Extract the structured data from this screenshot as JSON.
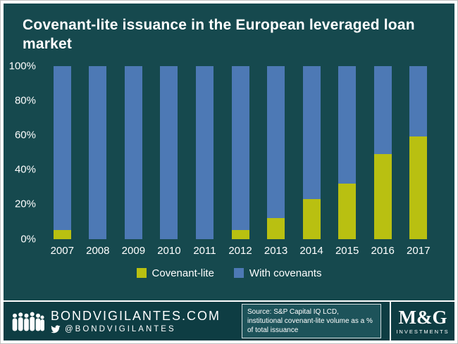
{
  "title": "Covenant-lite issuance in the European leveraged loan market",
  "colors": {
    "background": "#16494e",
    "footer_background": "#0e3d43",
    "covenant_lite": "#b9c011",
    "with_covenants": "#4d79b5",
    "text": "#ffffff"
  },
  "chart_data": {
    "type": "bar",
    "stacked": true,
    "title": "Covenant-lite issuance in the European leveraged loan market",
    "categories": [
      "2007",
      "2008",
      "2009",
      "2010",
      "2011",
      "2012",
      "2013",
      "2014",
      "2015",
      "2016",
      "2017"
    ],
    "series": [
      {
        "name": "Covenant-lite",
        "color": "#b9c011",
        "values": [
          5,
          0,
          0,
          0,
          0,
          5,
          12,
          23,
          32,
          49,
          59
        ]
      },
      {
        "name": "With covenants",
        "color": "#4d79b5",
        "values": [
          95,
          100,
          100,
          100,
          100,
          95,
          88,
          77,
          68,
          51,
          41
        ]
      }
    ],
    "xlabel": "",
    "ylabel": "",
    "ylim": [
      0,
      100
    ],
    "yticks": [
      0,
      20,
      40,
      60,
      80,
      100
    ],
    "ytick_suffix": "%",
    "grid": false,
    "legend_position": "bottom"
  },
  "footer": {
    "site_text": "BONDVIGILANTES.COM",
    "twitter_handle": "@BONDVIGILANTES",
    "source_text": "Source: S&P Capital IQ LCD, institutional covenant-lite volume as a % of total issuance",
    "brand_name": "M&G",
    "brand_subtitle": "INVESTMENTS"
  }
}
